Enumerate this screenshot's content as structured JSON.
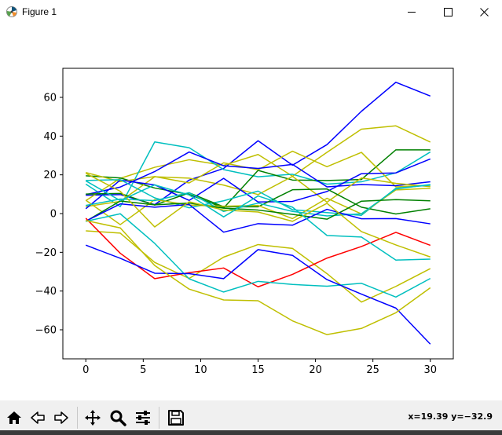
{
  "window": {
    "title": "Figure 1"
  },
  "toolbar": {
    "buttons": [
      "home-icon",
      "back-icon",
      "forward-icon",
      "pan-icon",
      "zoom-icon",
      "configure-subplots-icon",
      "save-icon"
    ],
    "coords": "x=19.39 y=−32.9"
  },
  "chart_data": {
    "type": "line",
    "title": "",
    "xlabel": "",
    "ylabel": "",
    "xlim": [
      -2,
      32
    ],
    "ylim": [
      -75,
      75
    ],
    "xticks": [
      0,
      5,
      10,
      15,
      20,
      25,
      30
    ],
    "yticks": [
      -60,
      -40,
      -20,
      0,
      20,
      40,
      60
    ],
    "ytick_labels": [
      "−60",
      "−40",
      "−20",
      "0",
      "20",
      "40",
      "60"
    ],
    "grid": false,
    "x": [
      0,
      3,
      6,
      9,
      12,
      15,
      18,
      21,
      24,
      27,
      30
    ],
    "series": [
      {
        "color": "#0000ff",
        "values": [
          9.5,
          9.8,
          4.6,
          17.3,
          23.3,
          37.6,
          25.0,
          35.6,
          52.8,
          67.8,
          60.7
        ]
      },
      {
        "color": "#bfbf00",
        "values": [
          6.7,
          18.2,
          23.9,
          27.8,
          24.9,
          30.5,
          19.3,
          31.6,
          43.6,
          45.3,
          36.9
        ]
      },
      {
        "color": "#00bfbf",
        "values": [
          15.2,
          3.6,
          37.0,
          34.0,
          22.7,
          19.0,
          20.3,
          15.2,
          16.4,
          21.0,
          31.8
        ]
      },
      {
        "color": "#008000",
        "values": [
          19.5,
          18.4,
          13.2,
          9.9,
          2.9,
          22.3,
          17.3,
          17.1,
          17.6,
          32.9,
          32.9
        ]
      },
      {
        "color": "#bfbf00",
        "values": [
          21.2,
          16.5,
          19.1,
          15.8,
          26.2,
          22.6,
          32.2,
          24.2,
          31.6,
          13.8,
          14.6
        ]
      },
      {
        "color": "#0000ff",
        "values": [
          9.8,
          13.7,
          21.7,
          31.8,
          24.7,
          23.3,
          25.4,
          13.8,
          15.0,
          14.4,
          16.4
        ]
      },
      {
        "color": "#bfbf00",
        "values": [
          3.6,
          6.3,
          19.0,
          18.3,
          14.7,
          9.8,
          19.2,
          5.9,
          18.4,
          15.6,
          13.9
        ]
      },
      {
        "color": "#0000ff",
        "values": [
          2.5,
          17.3,
          14.8,
          6.8,
          18.2,
          6.0,
          6.3,
          11.4,
          20.6,
          21.0,
          28.2
        ]
      },
      {
        "color": "#00bfbf",
        "values": [
          17.1,
          17.5,
          8.1,
          3.0,
          6.6,
          11.6,
          2.0,
          0.5,
          -0.9,
          13.1,
          14.7
        ]
      },
      {
        "color": "#008000",
        "values": [
          10.1,
          10.4,
          4.4,
          10.7,
          3.5,
          3.5,
          12.3,
          12.7,
          3.3,
          -0.2,
          2.5
        ]
      },
      {
        "color": "#bfbf00",
        "values": [
          6.9,
          -5.7,
          7.2,
          4.4,
          3.8,
          4.2,
          -2.6,
          7.9,
          -0.2,
          12.2,
          13.1
        ]
      },
      {
        "color": "#00bfbf",
        "values": [
          4.2,
          7.5,
          6.7,
          10.8,
          1.1,
          5.4,
          1.1,
          -1.2,
          -0.1,
          12.7,
          15.0
        ]
      },
      {
        "color": "#008000",
        "values": [
          -4.0,
          6.5,
          4.5,
          5.4,
          2.8,
          1.8,
          -0.4,
          -2.9,
          6.4,
          7.2,
          6.6
        ]
      },
      {
        "color": "#0000ff",
        "values": [
          -3.9,
          5.0,
          3.3,
          4.7,
          -9.6,
          -5.2,
          -6.0,
          2.2,
          -2.7,
          -2.6,
          -5.3
        ]
      },
      {
        "color": "#bfbf00",
        "values": [
          -8.9,
          -10.1,
          -25.2,
          -33.5,
          -22.5,
          -16.0,
          -18.0,
          -31.0,
          -45.7,
          -37.6,
          -28.4
        ]
      },
      {
        "color": "#ff0000",
        "values": [
          -2.4,
          -20.5,
          -33.6,
          -30.5,
          -28.1,
          -37.8,
          -31.4,
          -23.0,
          -17.0,
          -9.7,
          -16.4
        ]
      },
      {
        "color": "#00bfbf",
        "values": [
          -4.0,
          -0.1,
          -15.4,
          -33.7,
          -40.5,
          -35.0,
          -36.6,
          -37.5,
          -36.0,
          -43.1,
          -33.5
        ]
      },
      {
        "color": "#0000ff",
        "values": [
          -16.3,
          -23.1,
          -30.8,
          -31.0,
          -33.6,
          -18.6,
          -21.6,
          -34.1,
          -41.6,
          -48.8,
          -67.4
        ]
      },
      {
        "color": "#bfbf00",
        "values": [
          -3.6,
          -7.4,
          -26.8,
          -39.0,
          -44.6,
          -45.0,
          -55.4,
          -62.5,
          -59.3,
          -51.2,
          -38.3
        ]
      },
      {
        "color": "#bfbf00",
        "values": [
          20.8,
          11.5,
          -6.9,
          6.1,
          1.8,
          0.8,
          -4.0,
          5.3,
          -9.3,
          -16.2,
          -22.4
        ]
      },
      {
        "color": "#00bfbf",
        "values": [
          16.9,
          6.7,
          14.8,
          9.6,
          -1.7,
          9.1,
          3.3,
          -11.3,
          -12.1,
          -24.0,
          -23.5
        ]
      }
    ]
  }
}
